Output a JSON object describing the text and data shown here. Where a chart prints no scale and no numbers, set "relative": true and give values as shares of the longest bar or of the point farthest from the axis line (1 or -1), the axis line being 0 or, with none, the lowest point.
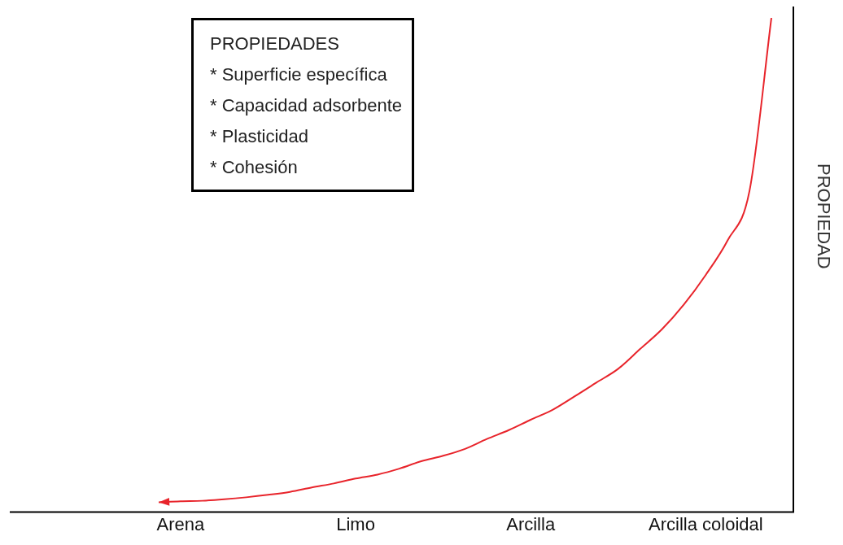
{
  "chart_data": {
    "type": "line",
    "relative": true,
    "ylabel": "PROPIEDAD",
    "annotations": [
      "PROPIEDADES",
      "* Superficie específica",
      "* Capacidad adsorbente",
      "* Plasticidad",
      "* Cohesión"
    ],
    "categories": [
      null,
      "Arena",
      null,
      null,
      null,
      null,
      null,
      null,
      null,
      "Limo",
      null,
      null,
      null,
      null,
      null,
      null,
      null,
      "Arcilla",
      null,
      null,
      null,
      null,
      null,
      null,
      null,
      "Arcilla coloidal",
      null,
      null,
      null
    ],
    "grid": false,
    "legend": false,
    "marker": "none",
    "line_style": "solid",
    "series": [
      {
        "color": "#e8242b",
        "values": [
          0.02,
          0.022,
          0.023,
          0.026,
          0.03,
          0.035,
          0.041,
          0.05,
          0.058,
          0.068,
          0.076,
          0.088,
          0.103,
          0.114,
          0.128,
          0.148,
          0.166,
          0.187,
          0.207,
          0.234,
          0.262,
          0.29,
          0.33,
          0.37,
          0.42,
          0.48,
          0.55,
          0.65,
          1
        ]
      }
    ]
  }
}
